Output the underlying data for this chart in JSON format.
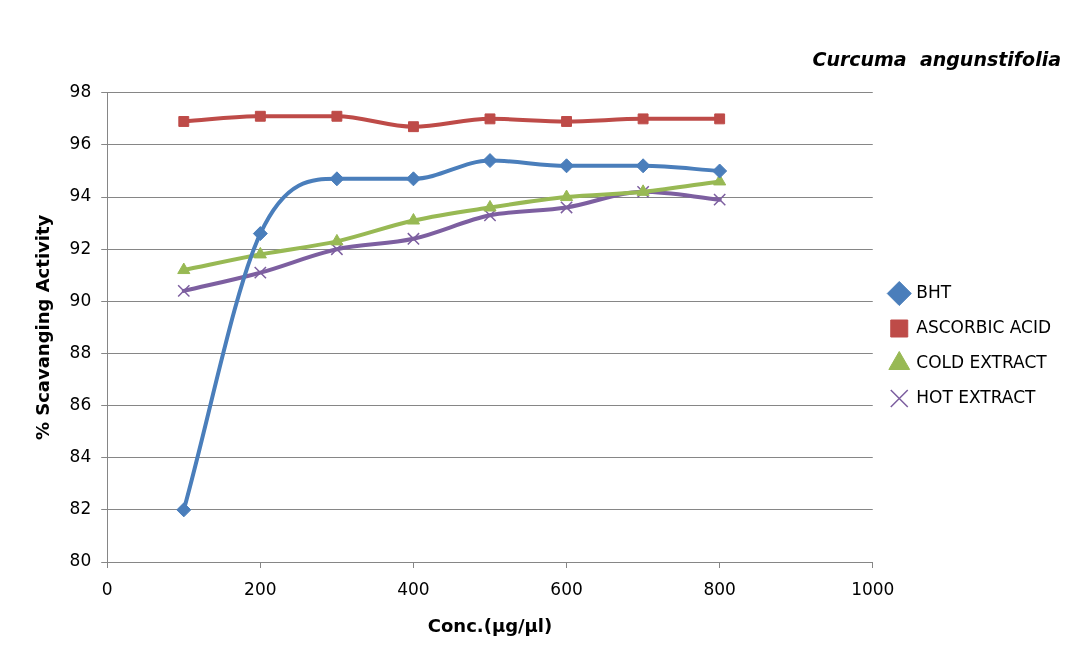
{
  "chart_data": {
    "type": "line",
    "title": "Curcuma  angunstifolia",
    "xlabel": "Conc.(µg/µl)",
    "ylabel": "% Scavanging Activity",
    "x": [
      100,
      200,
      300,
      400,
      500,
      600,
      700,
      800
    ],
    "series": [
      {
        "name": "BHT",
        "color": "#4a7ebb",
        "marker": "diamond",
        "values": [
          82.0,
          92.6,
          94.7,
          94.7,
          95.4,
          95.2,
          95.2,
          95.0
        ]
      },
      {
        "name": "ASCORBIC ACID",
        "color": "#be4b48",
        "marker": "square",
        "values": [
          96.9,
          97.1,
          97.1,
          96.7,
          97.0,
          96.9,
          97.0,
          97.0
        ]
      },
      {
        "name": "COLD EXTRACT",
        "color": "#98b954",
        "marker": "triangle",
        "values": [
          91.2,
          91.8,
          92.3,
          93.1,
          93.6,
          94.0,
          94.2,
          94.6
        ]
      },
      {
        "name": "HOT EXTRACT",
        "color": "#7d5fa0",
        "marker": "cross",
        "values": [
          90.4,
          91.1,
          92.0,
          92.4,
          93.3,
          93.6,
          94.2,
          93.9
        ]
      }
    ],
    "xlim": [
      0,
      1000
    ],
    "xticks": [
      0,
      200,
      400,
      600,
      800,
      1000
    ],
    "ylim": [
      80,
      98
    ],
    "yticks": [
      80,
      82,
      84,
      86,
      88,
      90,
      92,
      94,
      96,
      98
    ],
    "grid": "y",
    "legend": "right"
  }
}
